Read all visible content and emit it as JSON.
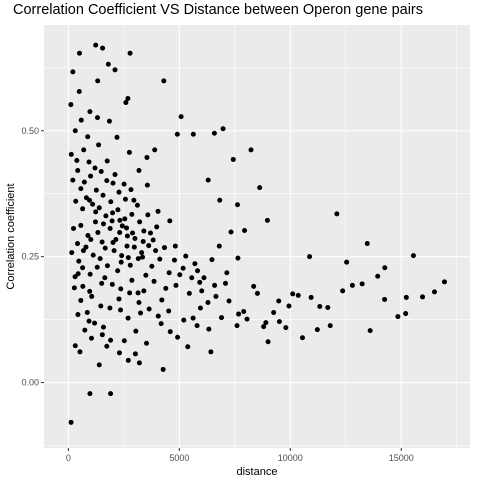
{
  "chart_data": {
    "type": "scatter",
    "title": "Correlation Coefficient VS Distance between Operon gene pairs",
    "xlabel": "distance",
    "ylabel": "Correlation coefficient",
    "xlim": [
      -1100,
      18100
    ],
    "ylim": [
      -0.13,
      0.71
    ],
    "xticks": [
      0,
      5000,
      10000,
      15000
    ],
    "xtick_labels": [
      "0",
      "5000",
      "10000",
      "15000"
    ],
    "yticks": [
      0.0,
      0.25,
      0.5
    ],
    "ytick_labels": [
      "0.00",
      "0.25",
      "0.50"
    ],
    "grid": true,
    "panel_color": "#ebebeb",
    "grid_color": "#ffffff",
    "point_color": "#000000",
    "legend": "none",
    "series": [
      {
        "points": [
          [
            1230,
            0.67
          ],
          [
            1540,
            0.664
          ],
          [
            500,
            0.654
          ],
          [
            2780,
            0.654
          ],
          [
            1800,
            0.632
          ],
          [
            200,
            0.617
          ],
          [
            2100,
            0.621
          ],
          [
            1320,
            0.599
          ],
          [
            490,
            0.578
          ],
          [
            2680,
            0.564
          ],
          [
            2590,
            0.556
          ],
          [
            4300,
            0.599
          ],
          [
            110,
            0.552
          ],
          [
            970,
            0.538
          ],
          [
            1310,
            0.526
          ],
          [
            5080,
            0.528
          ],
          [
            4910,
            0.493
          ],
          [
            5630,
            0.493
          ],
          [
            6580,
            0.495
          ],
          [
            6970,
            0.504
          ],
          [
            7430,
            0.443
          ],
          [
            8230,
            0.462
          ],
          [
            3890,
            0.462
          ],
          [
            7620,
            0.353
          ],
          [
            8620,
            0.387
          ],
          [
            6300,
            0.402
          ],
          [
            6820,
            0.362
          ],
          [
            12100,
            0.335
          ],
          [
            8970,
            0.322
          ],
          [
            13470,
            0.276
          ],
          [
            15550,
            0.252
          ],
          [
            15960,
            0.17
          ],
          [
            15230,
            0.169
          ],
          [
            16500,
            0.18
          ],
          [
            16950,
            0.2
          ],
          [
            14850,
            0.131
          ],
          [
            15200,
            0.137
          ],
          [
            14260,
            0.228
          ],
          [
            14250,
            0.165
          ],
          [
            12540,
            0.239
          ],
          [
            12360,
            0.182
          ],
          [
            12800,
            0.193
          ],
          [
            13240,
            0.196
          ],
          [
            13940,
            0.211
          ],
          [
            13600,
            0.103
          ],
          [
            10870,
            0.25
          ],
          [
            10360,
            0.173
          ],
          [
            10940,
            0.169
          ],
          [
            11330,
            0.151
          ],
          [
            11690,
            0.149
          ],
          [
            11220,
            0.105
          ],
          [
            10550,
            0.089
          ],
          [
            9940,
            0.152
          ],
          [
            9480,
            0.162
          ],
          [
            8900,
            0.119
          ],
          [
            9000,
            0.081
          ],
          [
            8520,
            0.177
          ],
          [
            7640,
            0.247
          ],
          [
            7940,
            0.302
          ],
          [
            7330,
            0.299
          ],
          [
            6800,
            0.271
          ],
          [
            7140,
            0.218
          ],
          [
            7670,
            0.136
          ],
          [
            6590,
            0.193
          ],
          [
            6420,
            0.061
          ],
          [
            5950,
            0.148
          ],
          [
            6330,
            0.106
          ],
          [
            4270,
            0.026
          ],
          [
            3020,
            0.057
          ],
          [
            1900,
            -0.022
          ],
          [
            970,
            -0.022
          ],
          [
            120,
            -0.079
          ],
          [
            1390,
            0.035
          ],
          [
            1730,
            0.072
          ],
          [
            2520,
            0.083
          ],
          [
            1580,
            0.11
          ],
          [
            310,
            0.073
          ],
          [
            520,
            0.061
          ],
          [
            930,
            0.122
          ],
          [
            2350,
            0.144
          ],
          [
            3250,
            0.138
          ],
          [
            3520,
            0.078
          ],
          [
            4180,
            0.117
          ],
          [
            4590,
            0.101
          ],
          [
            4920,
            0.09
          ],
          [
            5380,
            0.071
          ],
          [
            5620,
            0.128
          ],
          [
            3140,
            0.178
          ],
          [
            2860,
            0.203
          ],
          [
            2220,
            0.222
          ],
          [
            1500,
            0.197
          ],
          [
            960,
            0.181
          ],
          [
            440,
            0.216
          ],
          [
            2700,
            0.248
          ],
          [
            3340,
            0.249
          ],
          [
            3760,
            0.231
          ],
          [
            4120,
            0.245
          ],
          [
            4540,
            0.218
          ],
          [
            4820,
            0.271
          ],
          [
            5290,
            0.251
          ],
          [
            5820,
            0.222
          ],
          [
            6110,
            0.208
          ],
          [
            3980,
            0.309
          ],
          [
            4570,
            0.321
          ],
          [
            4040,
            0.34
          ],
          [
            3560,
            0.392
          ],
          [
            2950,
            0.362
          ],
          [
            2510,
            0.394
          ],
          [
            2100,
            0.413
          ],
          [
            1750,
            0.44
          ],
          [
            1360,
            0.472
          ],
          [
            870,
            0.488
          ],
          [
            580,
            0.521
          ],
          [
            310,
            0.5
          ],
          [
            1850,
            0.519
          ],
          [
            2190,
            0.487
          ],
          [
            2750,
            0.457
          ],
          [
            3180,
            0.421
          ],
          [
            3540,
            0.447
          ],
          [
            230,
            0.306
          ],
          [
            560,
            0.312
          ],
          [
            880,
            0.292
          ],
          [
            1220,
            0.319
          ],
          [
            1520,
            0.279
          ],
          [
            1880,
            0.306
          ],
          [
            2140,
            0.284
          ],
          [
            2430,
            0.311
          ],
          [
            2890,
            0.297
          ],
          [
            3370,
            0.28
          ],
          [
            3700,
            0.297
          ],
          [
            150,
            0.258
          ],
          [
            470,
            0.241
          ],
          [
            790,
            0.269
          ],
          [
            1120,
            0.253
          ],
          [
            1430,
            0.246
          ],
          [
            1760,
            0.232
          ],
          [
            2060,
            0.262
          ],
          [
            2380,
            0.239
          ],
          [
            2640,
            0.271
          ],
          [
            300,
            0.21
          ],
          [
            650,
            0.191
          ],
          [
            1050,
            0.171
          ],
          [
            1460,
            0.152
          ],
          [
            1870,
            0.148
          ],
          [
            2280,
            0.166
          ],
          [
            2690,
            0.128
          ],
          [
            3040,
            0.102
          ],
          [
            3400,
            0.182
          ],
          [
            4210,
            0.164
          ],
          [
            4850,
            0.193
          ],
          [
            5450,
            0.177
          ],
          [
            5920,
            0.199
          ],
          [
            6290,
            0.159
          ],
          [
            200,
            0.402
          ],
          [
            420,
            0.421
          ],
          [
            720,
            0.398
          ],
          [
            1000,
            0.41
          ],
          [
            1260,
            0.382
          ],
          [
            1560,
            0.372
          ],
          [
            1910,
            0.359
          ],
          [
            2230,
            0.343
          ],
          [
            2540,
            0.325
          ],
          [
            2860,
            0.334
          ],
          [
            3210,
            0.319
          ],
          [
            3580,
            0.333
          ],
          [
            330,
            0.36
          ],
          [
            640,
            0.345
          ],
          [
            950,
            0.362
          ],
          [
            1230,
            0.339
          ],
          [
            1580,
            0.315
          ],
          [
            1970,
            0.321
          ],
          [
            2310,
            0.298
          ],
          [
            2620,
            0.307
          ],
          [
            2970,
            0.269
          ],
          [
            3300,
            0.258
          ],
          [
            3620,
            0.272
          ],
          [
            3930,
            0.262
          ],
          [
            130,
            0.453
          ],
          [
            380,
            0.441
          ],
          [
            690,
            0.462
          ],
          [
            930,
            0.438
          ],
          [
            1200,
            0.426
          ],
          [
            1480,
            0.419
          ],
          [
            1730,
            0.401
          ],
          [
            2010,
            0.396
          ],
          [
            2280,
            0.378
          ],
          [
            2570,
            0.364
          ],
          [
            2820,
            0.383
          ],
          [
            3110,
            0.352
          ],
          [
            270,
            0.188
          ],
          [
            560,
            0.163
          ],
          [
            850,
            0.139
          ],
          [
            1180,
            0.118
          ],
          [
            1530,
            0.095
          ],
          [
            1900,
            0.084
          ],
          [
            2300,
            0.059
          ],
          [
            2700,
            0.044
          ],
          [
            3200,
            0.039
          ],
          [
            430,
            0.135
          ],
          [
            740,
            0.104
          ],
          [
            1040,
            0.088
          ],
          [
            410,
            0.276
          ],
          [
            680,
            0.262
          ],
          [
            1010,
            0.284
          ],
          [
            1330,
            0.298
          ],
          [
            1660,
            0.267
          ],
          [
            2010,
            0.278
          ],
          [
            2400,
            0.252
          ],
          [
            2790,
            0.233
          ],
          [
            3150,
            0.246
          ],
          [
            3490,
            0.213
          ],
          [
            3860,
            0.201
          ],
          [
            4390,
            0.187
          ],
          [
            5020,
            0.214
          ],
          [
            5700,
            0.236
          ],
          [
            6470,
            0.244
          ],
          [
            7080,
            0.197
          ],
          [
            7900,
            0.141
          ],
          [
            8350,
            0.191
          ],
          [
            9250,
            0.139
          ],
          [
            10110,
            0.176
          ],
          [
            560,
            0.385
          ],
          [
            810,
            0.367
          ],
          [
            1090,
            0.354
          ],
          [
            1390,
            0.347
          ],
          [
            1690,
            0.331
          ],
          [
            1990,
            0.337
          ],
          [
            2320,
            0.322
          ],
          [
            2660,
            0.291
          ],
          [
            3000,
            0.286
          ],
          [
            3400,
            0.301
          ],
          [
            3820,
            0.283
          ],
          [
            4330,
            0.268
          ],
          [
            4780,
            0.243
          ],
          [
            5170,
            0.227
          ],
          [
            5560,
            0.208
          ],
          [
            6010,
            0.182
          ],
          [
            6650,
            0.171
          ],
          [
            7240,
            0.162
          ],
          [
            8050,
            0.126
          ],
          [
            9510,
            0.121
          ],
          [
            640,
            0.228
          ],
          [
            980,
            0.215
          ],
          [
            1300,
            0.229
          ],
          [
            1640,
            0.208
          ],
          [
            1980,
            0.195
          ],
          [
            2360,
            0.186
          ],
          [
            2760,
            0.178
          ],
          [
            3180,
            0.159
          ],
          [
            3640,
            0.146
          ],
          [
            4050,
            0.132
          ],
          [
            4520,
            0.142
          ],
          [
            5200,
            0.124
          ],
          [
            5800,
            0.113
          ],
          [
            6900,
            0.129
          ],
          [
            7600,
            0.113
          ],
          [
            8800,
            0.111
          ],
          [
            9800,
            0.109
          ],
          [
            11800,
            0.113
          ]
        ]
      }
    ]
  }
}
